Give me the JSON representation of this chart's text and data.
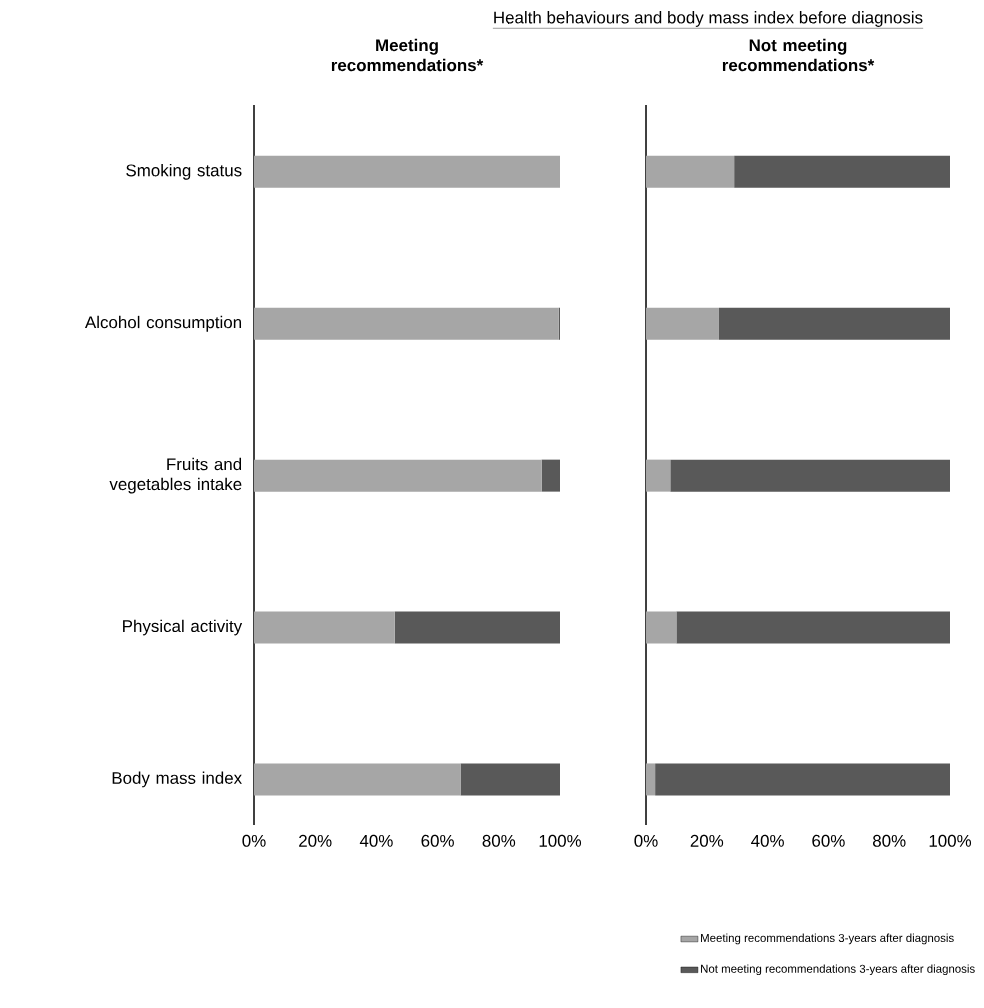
{
  "chart_data": [
    {
      "type": "bar",
      "orientation": "horizontal",
      "stacked": true,
      "title": "Meeting recommendations*",
      "annotations": [
        "Health behaviours and body mass index before diagnosis"
      ],
      "categories": [
        "Smoking status",
        "Alcohol consumption",
        "Fruits and vegetables intake",
        "Physical activity",
        "Body mass index"
      ],
      "series": [
        {
          "color": "#a6a6a6",
          "values": [
            100,
            99.6,
            94,
            46,
            67.5
          ]
        },
        {
          "color": "#595959",
          "values": [
            0,
            0.4,
            6,
            54,
            32.5
          ]
        }
      ],
      "xlim": [
        0,
        100
      ],
      "xticks": [
        {
          "value": 0,
          "label": "0%"
        },
        {
          "value": 20,
          "label": "20%"
        },
        {
          "value": 40,
          "label": "40%"
        },
        {
          "value": 60,
          "label": "60%"
        },
        {
          "value": 80,
          "label": "80%"
        },
        {
          "value": 100,
          "label": "100%"
        }
      ]
    },
    {
      "type": "bar",
      "orientation": "horizontal",
      "stacked": true,
      "title": "Not meeting recommendations*",
      "categories": [
        null,
        null,
        null,
        null,
        null
      ],
      "series": [
        {
          "name": "Meeting recommendations 3-years after diagnosis",
          "color": "#a6a6a6",
          "values": [
            29,
            24,
            8,
            10,
            3
          ]
        },
        {
          "name": "Not meeting recommendations 3-years after diagnosis",
          "color": "#595959",
          "values": [
            71,
            76,
            92,
            90,
            97
          ]
        }
      ],
      "xlim": [
        0,
        100
      ],
      "xticks": [
        {
          "value": 0,
          "label": "0%"
        },
        {
          "value": 20,
          "label": "20%"
        },
        {
          "value": 40,
          "label": "40%"
        },
        {
          "value": 60,
          "label": "60%"
        },
        {
          "value": 80,
          "label": "80%"
        },
        {
          "value": 100,
          "label": "100%"
        }
      ],
      "legend": "bottom"
    }
  ]
}
